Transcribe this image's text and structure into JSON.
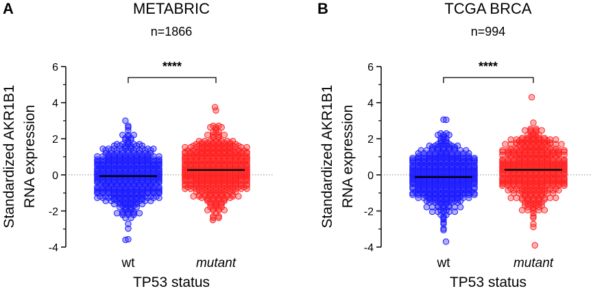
{
  "chart_data": [
    {
      "type": "scatter",
      "panel_label": "A",
      "title": "METABRIC",
      "subtitle": "n=1866",
      "ylabel_line1": "Standardized AKR1B1",
      "ylabel_line2": "RNA expression",
      "xlabel": "TP53 status",
      "categories": [
        "wt",
        "mutant"
      ],
      "ylim": [
        -4,
        6
      ],
      "yticks": [
        "-4",
        "-2",
        "0",
        "2",
        "4",
        "6"
      ],
      "series": [
        {
          "name": "wt",
          "color": "#1a1aff",
          "mean": -0.07,
          "n": 1866,
          "min": -3.6,
          "max": 3.0
        },
        {
          "name": "mutant",
          "color": "#ff2020",
          "mean": 0.27,
          "min": -2.5,
          "max": 3.75
        }
      ],
      "significance": "****",
      "reference_line": 0
    },
    {
      "type": "scatter",
      "panel_label": "B",
      "title": "TCGA BRCA",
      "subtitle": "n=994",
      "ylabel_line1": "Standardized AKR1B1",
      "ylabel_line2": "RNA expression",
      "xlabel": "TP53 status",
      "categories": [
        "wt",
        "mutant"
      ],
      "ylim": [
        -4,
        6
      ],
      "yticks": [
        "-4",
        "-2",
        "0",
        "2",
        "4",
        "6"
      ],
      "series": [
        {
          "name": "wt",
          "color": "#1a1aff",
          "mean": -0.12,
          "min": -3.7,
          "max": 3.05
        },
        {
          "name": "mutant",
          "color": "#ff2020",
          "mean": 0.28,
          "min": -3.9,
          "max": 4.3
        }
      ],
      "significance": "****",
      "reference_line": 0
    }
  ]
}
